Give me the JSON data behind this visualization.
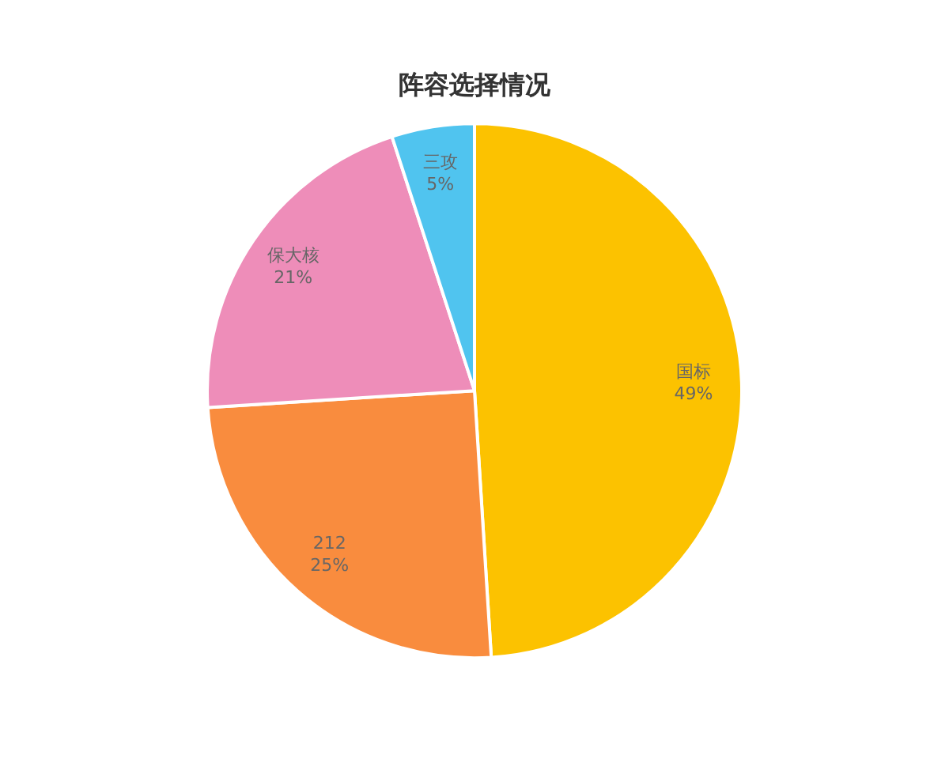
{
  "chart_data": {
    "type": "pie",
    "title": "阵容选择情况",
    "categories": [
      "国标",
      "212",
      "保大核",
      "三攻"
    ],
    "values": [
      49,
      25,
      21,
      5
    ],
    "colors": [
      "#fcc200",
      "#f98c3e",
      "#ee8db9",
      "#50c4ef"
    ],
    "value_labels": [
      "49%",
      "25%",
      "21%",
      "5%"
    ],
    "legend": false
  }
}
